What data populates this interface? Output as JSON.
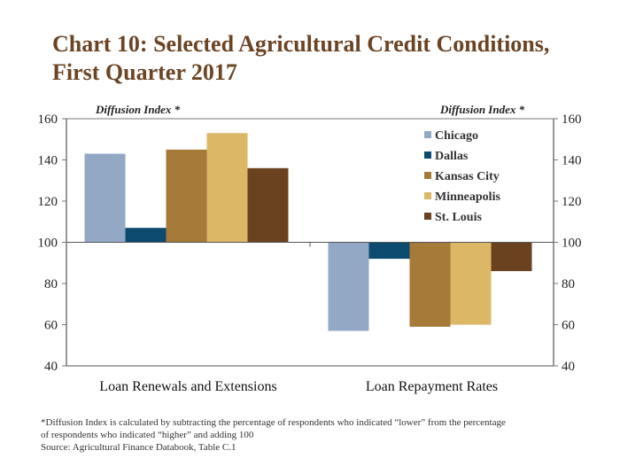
{
  "chart_data": {
    "type": "bar",
    "title": "Chart 10: Selected Agricultural Credit Conditions, First Quarter 2017",
    "title_lines": [
      "Chart 10: Selected Agricultural Credit Conditions,",
      "First Quarter 2017"
    ],
    "ylabel_left": "Diffusion Index *",
    "ylabel_right": "Diffusion Index *",
    "xlabel": "",
    "ylim": [
      40,
      160
    ],
    "baseline": 100,
    "yticks": [
      40,
      60,
      80,
      100,
      120,
      140,
      160
    ],
    "categories": [
      "Loan Renewals and Extensions",
      "Loan Repayment Rates"
    ],
    "series": [
      {
        "name": "Chicago",
        "color": "#92a8c5",
        "values": [
          143,
          57
        ]
      },
      {
        "name": "Dallas",
        "color": "#0d4a70",
        "values": [
          107,
          92
        ]
      },
      {
        "name": "Kansas City",
        "color": "#a67a38",
        "values": [
          145,
          59
        ]
      },
      {
        "name": "Minneapolis",
        "color": "#dcb766",
        "values": [
          153,
          60
        ]
      },
      {
        "name": "St. Louis",
        "color": "#6b4220",
        "values": [
          136,
          86
        ]
      }
    ],
    "legend_placement": "top-right",
    "grid": false
  },
  "footnote": {
    "lines": [
      "*Diffusion Index is calculated by subtracting the percentage of respondents who indicated “lower” from the percentage",
      "of respondents who indicated “higher” and adding 100",
      "Source: Agricultural Finance Databook, Table C.1"
    ]
  }
}
